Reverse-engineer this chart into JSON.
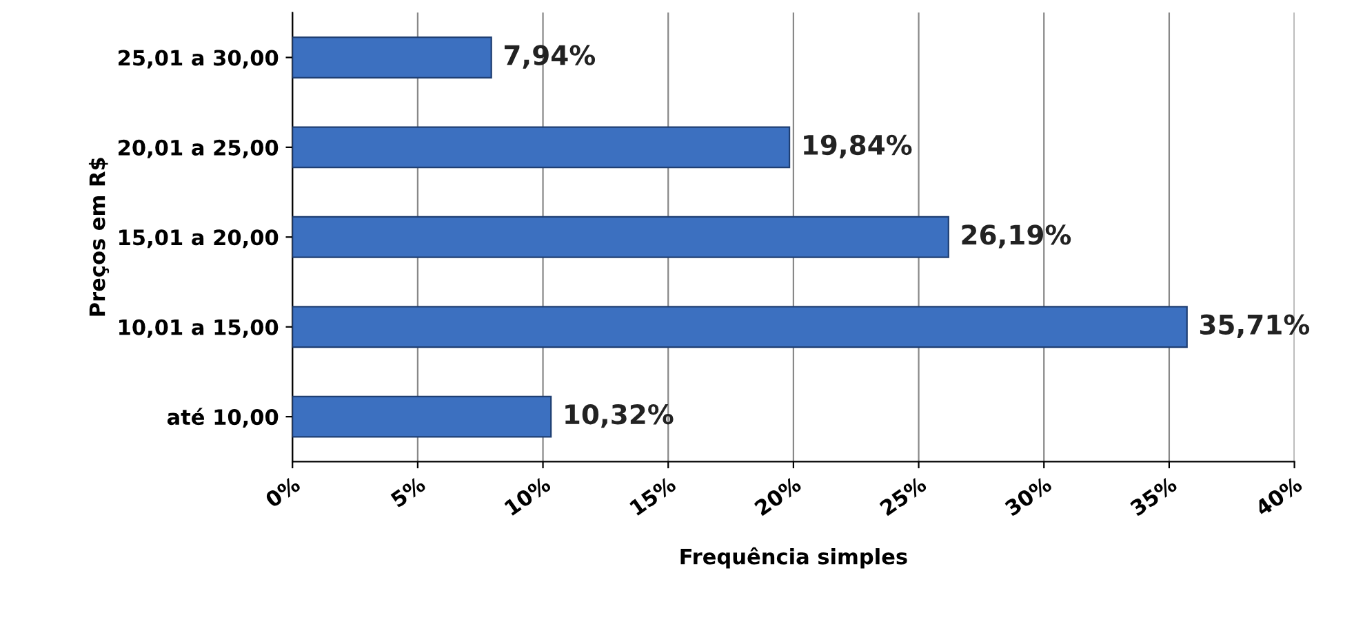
{
  "chart_data": {
    "type": "bar",
    "orientation": "horizontal",
    "xlabel": "Frequência simples",
    "ylabel": "Preços em R$",
    "categories": [
      "25,01 a 30,00",
      "20,01 a 25,00",
      "15,01 a 20,00",
      "10,01 a 15,00",
      "até 10,00"
    ],
    "values": [
      7.94,
      19.84,
      26.19,
      35.71,
      10.32
    ],
    "value_labels": [
      "7,94%",
      "19,84%",
      "26,19%",
      "35,71%",
      "10,32%"
    ],
    "color": "#3c70c0",
    "xlim": [
      0,
      40
    ],
    "xticks": [
      {
        "value": 0,
        "label": "0%"
      },
      {
        "value": 5,
        "label": "5%"
      },
      {
        "value": 10,
        "label": "10%"
      },
      {
        "value": 15,
        "label": "15%"
      },
      {
        "value": 20,
        "label": "20%"
      },
      {
        "value": 25,
        "label": "25%"
      },
      {
        "value": 30,
        "label": "30%"
      },
      {
        "value": 35,
        "label": "35%"
      },
      {
        "value": 40,
        "label": "40%"
      }
    ],
    "grid": "x",
    "legend": false
  }
}
